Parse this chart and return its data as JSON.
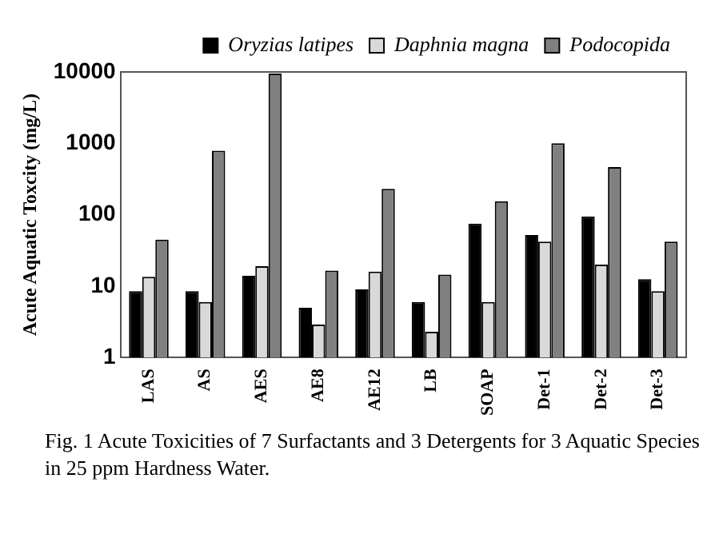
{
  "chart_data": {
    "type": "bar",
    "ylabel": "Acute Aquatic Toxcity (mg/L)",
    "categories": [
      "LAS",
      "AS",
      "AES",
      "AE8",
      "AE12",
      "LB",
      "SOAP",
      "Det-1",
      "Det-2",
      "Det-3"
    ],
    "series": [
      {
        "name": "Oryzias latipes",
        "color": "#000000",
        "values": [
          8.5,
          8.5,
          14,
          5,
          9,
          6,
          75,
          52,
          95,
          12.5
        ]
      },
      {
        "name": "Daphnia magna",
        "color": "#d9d9d9",
        "values": [
          13.5,
          6,
          19,
          2.9,
          16,
          2.3,
          6,
          42,
          20,
          8.5
        ]
      },
      {
        "name": "Podocopida",
        "color": "#808080",
        "values": [
          45,
          790,
          9500,
          16.5,
          230,
          14.5,
          155,
          1000,
          465,
          42
        ]
      }
    ],
    "log": "y",
    "ylim": [
      1,
      10000
    ],
    "yticks": [
      1,
      10,
      100,
      1000,
      10000
    ],
    "grid": false,
    "legend": "top right",
    "annotations": [
      "Fig. 1  Acute Toxicities of 7 Surfactants and 3 Detergents for 3 Aquatic Species in 25 ppm Hardness Water."
    ]
  }
}
